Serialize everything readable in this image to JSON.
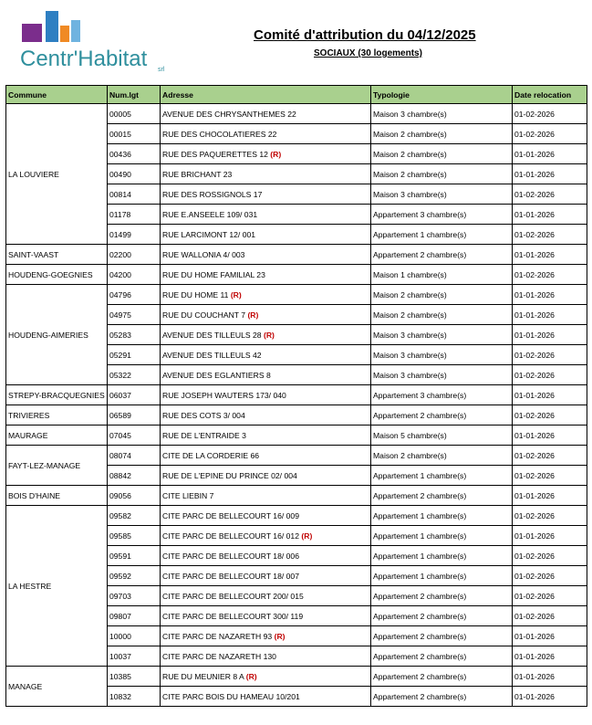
{
  "logo": {
    "name": "Centr'Habitat",
    "suffix": "srl"
  },
  "header": {
    "title": "Comité d'attribution du 04/12/2025",
    "subtitle": "SOCIAUX (30 logements)"
  },
  "table": {
    "columns": [
      "Commune",
      "Num.lgt",
      "Adresse",
      "Typologie",
      "Date relocation"
    ],
    "groups": [
      {
        "commune": "LA LOUVIERE",
        "rows": [
          [
            "00005",
            "AVENUE DES CHRYSANTHEMES 22",
            "Maison 3 chambre(s)",
            "01-02-2026"
          ],
          [
            "00015",
            "RUE DES CHOCOLATIERES 22",
            "Maison 2 chambre(s)",
            "01-02-2026"
          ],
          [
            "00436",
            "RUE DES PAQUERETTES 12",
            "Maison 2 chambre(s)",
            "01-01-2026",
            "(R)"
          ],
          [
            "00490",
            "RUE BRICHANT 23",
            "Maison 2 chambre(s)",
            "01-01-2026"
          ],
          [
            "00814",
            "RUE DES ROSSIGNOLS 17",
            "Maison 3 chambre(s)",
            "01-02-2026"
          ],
          [
            "01178",
            "RUE E.ANSEELE 109/ 031",
            "Appartement 3 chambre(s)",
            "01-01-2026"
          ],
          [
            "01499",
            "RUE LARCIMONT 12/ 001",
            "Appartement 1 chambre(s)",
            "01-02-2026"
          ]
        ]
      },
      {
        "commune": "SAINT-VAAST",
        "rows": [
          [
            "02200",
            "RUE WALLONIA 4/ 003",
            "Appartement 2 chambre(s)",
            "01-01-2026"
          ]
        ]
      },
      {
        "commune": "HOUDENG-GOEGNIES",
        "rows": [
          [
            "04200",
            "RUE DU HOME FAMILIAL 23",
            "Maison 1 chambre(s)",
            "01-02-2026"
          ]
        ]
      },
      {
        "commune": "HOUDENG-AIMERIES",
        "rows": [
          [
            "04796",
            "RUE DU HOME 11",
            "Maison 2 chambre(s)",
            "01-01-2026",
            "(R)"
          ],
          [
            "04975",
            "RUE DU COUCHANT 7",
            "Maison 2 chambre(s)",
            "01-01-2026",
            "(R)"
          ],
          [
            "05283",
            "AVENUE DES TILLEULS 28",
            "Maison 3 chambre(s)",
            "01-01-2026",
            "(R)"
          ],
          [
            "05291",
            "AVENUE DES TILLEULS 42",
            "Maison 3 chambre(s)",
            "01-02-2026"
          ],
          [
            "05322",
            "AVENUE DES EGLANTIERS 8",
            "Maison 3 chambre(s)",
            "01-02-2026"
          ]
        ]
      },
      {
        "commune": "STREPY-BRACQUEGNIES",
        "rows": [
          [
            "06037",
            "RUE JOSEPH WAUTERS 173/ 040",
            "Appartement 3 chambre(s)",
            "01-01-2026"
          ]
        ]
      },
      {
        "commune": "TRIVIERES",
        "rows": [
          [
            "06589",
            "RUE DES COTS 3/ 004",
            "Appartement 2 chambre(s)",
            "01-02-2026"
          ]
        ]
      },
      {
        "commune": "MAURAGE",
        "rows": [
          [
            "07045",
            "RUE DE L'ENTRAIDE 3",
            "Maison 5 chambre(s)",
            "01-01-2026"
          ]
        ]
      },
      {
        "commune": "FAYT-LEZ-MANAGE",
        "rows": [
          [
            "08074",
            "CITE DE LA CORDERIE 66",
            "Maison 2 chambre(s)",
            "01-02-2026"
          ],
          [
            "08842",
            "RUE DE L'EPINE DU PRINCE 02/ 004",
            "Appartement 1 chambre(s)",
            "01-02-2026"
          ]
        ]
      },
      {
        "commune": "BOIS D'HAINE",
        "rows": [
          [
            "09056",
            "CITE LIEBIN 7",
            "Appartement 2 chambre(s)",
            "01-01-2026"
          ]
        ]
      },
      {
        "commune": "LA HESTRE",
        "rows": [
          [
            "09582",
            "CITE PARC DE BELLECOURT 16/ 009",
            "Appartement 1 chambre(s)",
            "01-02-2026"
          ],
          [
            "09585",
            "CITE PARC DE BELLECOURT 16/ 012",
            "Appartement 1 chambre(s)",
            "01-01-2026",
            "(R)"
          ],
          [
            "09591",
            "CITE PARC DE BELLECOURT 18/ 006",
            "Appartement 1 chambre(s)",
            "01-02-2026"
          ],
          [
            "09592",
            "CITE PARC DE BELLECOURT 18/ 007",
            "Appartement 1 chambre(s)",
            "01-02-2026"
          ],
          [
            "09703",
            "CITE PARC DE BELLECOURT 200/ 015",
            "Appartement 2 chambre(s)",
            "01-02-2026"
          ],
          [
            "09807",
            "CITE PARC DE BELLECOURT 300/ 119",
            "Appartement 2 chambre(s)",
            "01-02-2026"
          ],
          [
            "10000",
            "CITE PARC DE NAZARETH 93",
            "Appartement 2 chambre(s)",
            "01-01-2026",
            "(R)"
          ],
          [
            "10037",
            "CITE PARC DE NAZARETH 130",
            "Appartement 2 chambre(s)",
            "01-01-2026"
          ]
        ]
      },
      {
        "commune": "MANAGE",
        "rows": [
          [
            "10385",
            "RUE DU MEUNIER 8 A",
            "Appartement 2 chambre(s)",
            "01-01-2026",
            "(R)"
          ],
          [
            "10832",
            "CITE PARC BOIS DU HAMEAU 10/201",
            "Appartement 2 chambre(s)",
            "01-01-2026"
          ]
        ]
      }
    ]
  }
}
